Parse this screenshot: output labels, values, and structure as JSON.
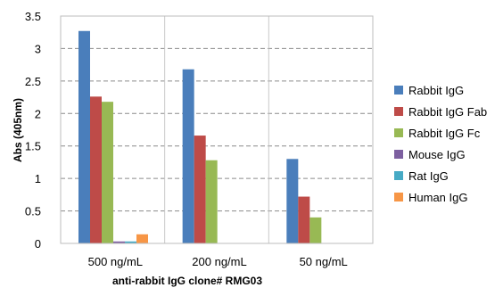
{
  "chart_data": {
    "type": "bar",
    "title": "",
    "xlabel": "anti-rabbit IgG clone# RMG03",
    "ylabel": "Abs (405nm)",
    "ylim": [
      0,
      3.5
    ],
    "yticks": [
      "0",
      "0.5",
      "1",
      "1.5",
      "2",
      "2.5",
      "3",
      "3.5"
    ],
    "ytick_values": [
      0,
      0.5,
      1,
      1.5,
      2,
      2.5,
      3,
      3.5
    ],
    "grid": true,
    "legend_position": "right",
    "categories": [
      "500 ng/mL",
      "200 ng/mL",
      "50 ng/mL"
    ],
    "series": [
      {
        "name": "Rabbit IgG",
        "color": "#4a7ebb",
        "values": [
          3.27,
          2.68,
          1.3
        ]
      },
      {
        "name": "Rabbit IgG Fab",
        "color": "#be4b48",
        "values": [
          2.26,
          1.66,
          0.72
        ]
      },
      {
        "name": "Rabbit IgG Fc",
        "color": "#98b954",
        "values": [
          2.18,
          1.28,
          0.4
        ]
      },
      {
        "name": "Mouse IgG",
        "color": "#7d60a0",
        "values": [
          0.03,
          0.0,
          0.0
        ]
      },
      {
        "name": "Rat IgG",
        "color": "#46aac5",
        "values": [
          0.03,
          0.0,
          0.0
        ]
      },
      {
        "name": "Human IgG",
        "color": "#f79646",
        "values": [
          0.14,
          0.0,
          0.0
        ]
      }
    ]
  }
}
